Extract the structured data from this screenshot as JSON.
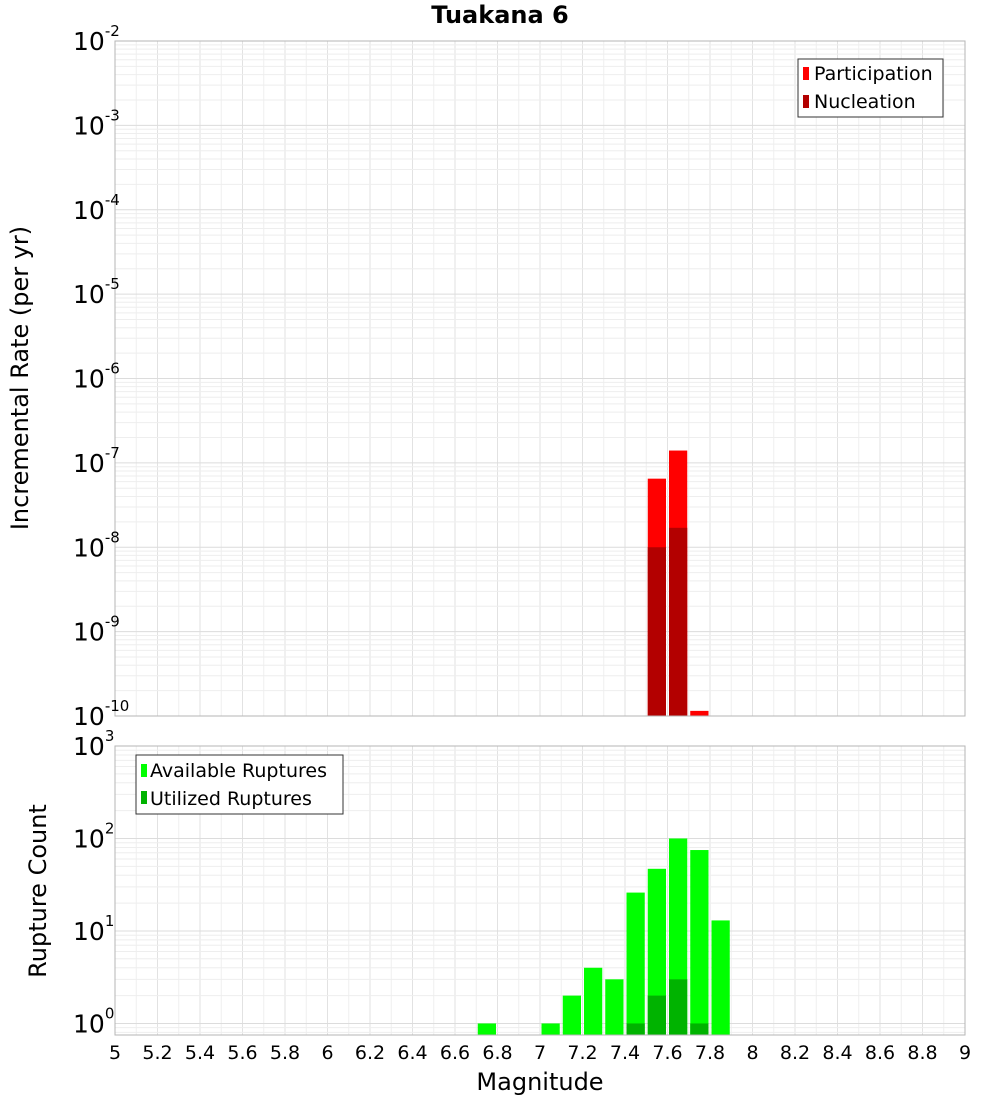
{
  "chart_data": [
    {
      "type": "bar",
      "title": "Tuakana 6",
      "xlabel": "",
      "ylabel": "Incremental Rate (per yr)",
      "xlim": [
        5,
        9
      ],
      "ylim": [
        1e-10,
        0.01
      ],
      "yscale": "log",
      "grid": true,
      "legend_position": "top-right",
      "bin_width": 0.1,
      "y_ticks": [
        {
          "base": "10",
          "exp": "-10",
          "value": 1e-10
        },
        {
          "base": "10",
          "exp": "-9",
          "value": 1e-09
        },
        {
          "base": "10",
          "exp": "-8",
          "value": 1e-08
        },
        {
          "base": "10",
          "exp": "-7",
          "value": 1e-07
        },
        {
          "base": "10",
          "exp": "-6",
          "value": 1e-06
        },
        {
          "base": "10",
          "exp": "-5",
          "value": 1e-05
        },
        {
          "base": "10",
          "exp": "-4",
          "value": 0.0001
        },
        {
          "base": "10",
          "exp": "-3",
          "value": 0.001
        },
        {
          "base": "10",
          "exp": "-2",
          "value": 0.01
        }
      ],
      "series": [
        {
          "name": "Participation",
          "color": "#ff0000",
          "x": [
            7.55,
            7.65,
            7.75
          ],
          "values": [
            6.5e-08,
            1.4e-07,
            1.15e-10
          ]
        },
        {
          "name": "Nucleation",
          "color": "#b30000",
          "x": [
            7.55,
            7.65
          ],
          "values": [
            1e-08,
            1.7e-08
          ]
        }
      ]
    },
    {
      "type": "bar",
      "title": "",
      "xlabel": "Magnitude",
      "ylabel": "Rupture Count",
      "xlim": [
        5,
        9
      ],
      "ylim": [
        0.75,
        1000
      ],
      "yscale": "log",
      "grid": true,
      "legend_position": "top-left",
      "bin_width": 0.1,
      "x_ticks": [
        "5",
        "5.2",
        "5.4",
        "5.6",
        "5.8",
        "6",
        "6.2",
        "6.4",
        "6.6",
        "6.8",
        "7",
        "7.2",
        "7.4",
        "7.6",
        "7.8",
        "8",
        "8.2",
        "8.4",
        "8.6",
        "8.8",
        "9"
      ],
      "y_ticks": [
        {
          "base": "10",
          "exp": "0",
          "value": 1
        },
        {
          "base": "10",
          "exp": "1",
          "value": 10
        },
        {
          "base": "10",
          "exp": "2",
          "value": 100
        },
        {
          "base": "10",
          "exp": "3",
          "value": 1000
        }
      ],
      "series": [
        {
          "name": "Available Ruptures",
          "color": "#00ff00",
          "x": [
            6.75,
            7.05,
            7.15,
            7.25,
            7.35,
            7.45,
            7.55,
            7.65,
            7.75,
            7.85
          ],
          "values": [
            1,
            1,
            2,
            4,
            3,
            26,
            47,
            100,
            75,
            13
          ]
        },
        {
          "name": "Utilized Ruptures",
          "color": "#00b300",
          "x": [
            7.45,
            7.55,
            7.65,
            7.75
          ],
          "values": [
            1,
            2,
            3,
            1
          ]
        }
      ]
    }
  ]
}
